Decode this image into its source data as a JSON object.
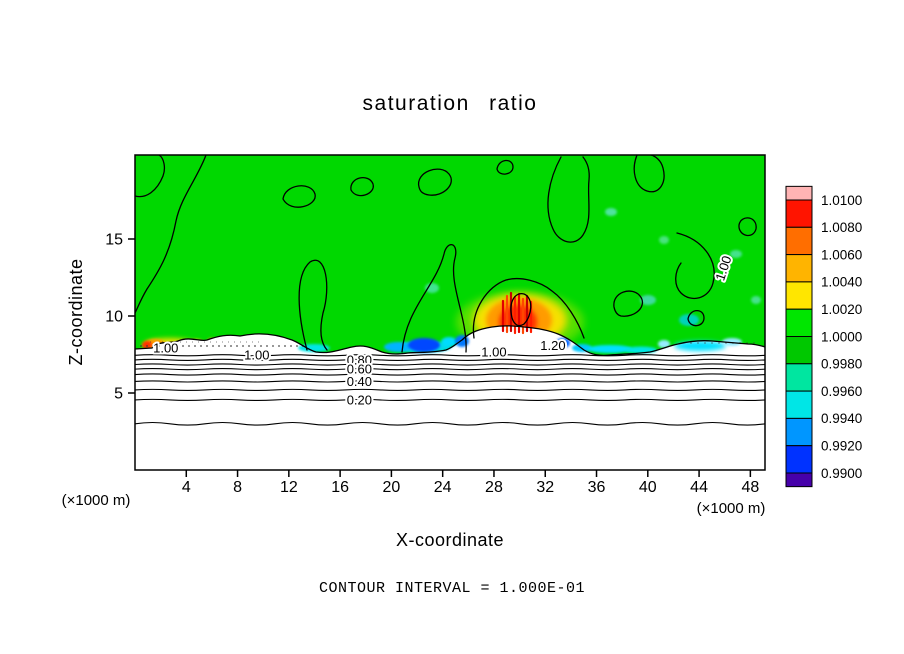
{
  "chart_data": {
    "type": "heatmap",
    "title": "saturation ratio",
    "xlabel": "X-coordinate",
    "ylabel": "Z-coordinate",
    "x_unit_note": "(×1000 m)",
    "z_unit_note": "(×1000 m)",
    "footer": "CONTOUR INTERVAL = 1.000E-01",
    "x_range_km": [
      0,
      49
    ],
    "z_range_km": [
      0,
      20.4
    ],
    "x_ticks": [
      4,
      8,
      12,
      16,
      20,
      24,
      28,
      32,
      36,
      40,
      44,
      48
    ],
    "z_ticks": [
      5,
      10,
      15
    ],
    "contour_interval": 0.1,
    "colorbar": {
      "min": 0.99,
      "max": 1.01,
      "tick_labels": [
        "1.0100",
        "1.0080",
        "1.0060",
        "1.0040",
        "1.0020",
        "1.0000",
        "0.9980",
        "0.9960",
        "0.9940",
        "0.9920",
        "0.9900"
      ],
      "segment_colors_top_to_bottom": [
        "#ffb4b4",
        "#ff1400",
        "#ff6e00",
        "#ffb400",
        "#ffe600",
        "#00e600",
        "#00c800",
        "#00e6a0",
        "#00e6e6",
        "#0096ff",
        "#0032ff",
        "#4600aa"
      ]
    },
    "stratified_contours": [
      {
        "value": 0.9,
        "z_km": 7.45
      },
      {
        "value": 0.8,
        "z_km": 7.15
      },
      {
        "value": 0.7,
        "z_km": 6.85
      },
      {
        "value": 0.6,
        "z_km": 6.55
      },
      {
        "value": 0.5,
        "z_km": 6.2
      },
      {
        "value": 0.4,
        "z_km": 5.75
      },
      {
        "value": 0.3,
        "z_km": 5.2
      },
      {
        "value": 0.2,
        "z_km": 4.55
      },
      {
        "value": 0.1,
        "z_km": 3.0
      }
    ],
    "contour_labels": [
      {
        "text": "1.00",
        "x_km": 2.4,
        "z_km": 7.92
      },
      {
        "text": "1.00",
        "x_km": 9.5,
        "z_km": 7.47
      },
      {
        "text": "0.80",
        "x_km": 17.5,
        "z_km": 7.15
      },
      {
        "text": "0.60",
        "x_km": 17.5,
        "z_km": 6.55
      },
      {
        "text": "0.40",
        "x_km": 17.5,
        "z_km": 5.75
      },
      {
        "text": "0.20",
        "x_km": 17.5,
        "z_km": 4.55
      },
      {
        "text": "1.00",
        "x_km": 28.0,
        "z_km": 7.66
      },
      {
        "text": "1.20",
        "x_km": 32.6,
        "z_km": 8.1
      },
      {
        "text": "1.00",
        "x_km": 45.9,
        "z_km": 13.1,
        "rotated": true
      }
    ],
    "field_features": [
      "background above z≈7.5 km: saturation ratio ≈1.00 (green)",
      "supersaturated plume near x≈28-31 km, z≈9-12 km: up to ≈1.006-1.010 (yellow/orange/red)",
      "cloud-top band z≈7-8 km: pockets of ≈0.992-0.998 (cyan/blue) and ≈1.002-1.004 (yellow/orange)",
      "below cloud base: value decreases in horizontal layers from 0.9 to 0.1 toward the surface"
    ]
  }
}
